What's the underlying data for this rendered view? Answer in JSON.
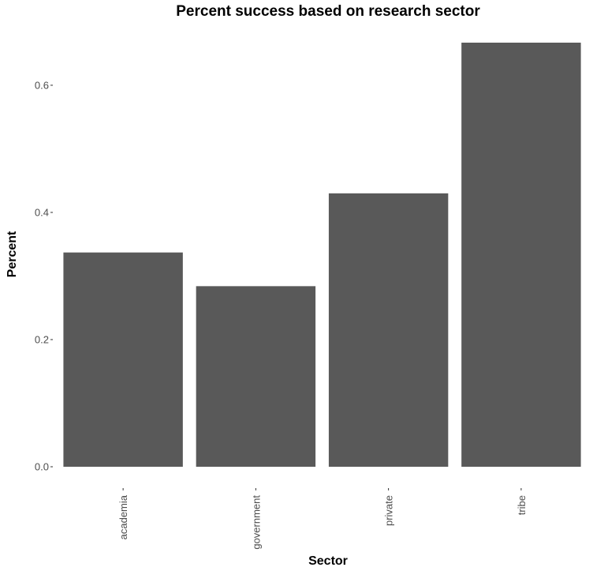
{
  "chart_data": {
    "type": "bar",
    "title": "Percent success based on research sector",
    "xlabel": "Sector",
    "ylabel": "Percent",
    "categories": [
      "academia",
      "government",
      "private",
      "tribe"
    ],
    "values": [
      0.337,
      0.284,
      0.43,
      0.667
    ],
    "ylim": [
      0,
      0.667
    ],
    "yticks": [
      0.0,
      0.2,
      0.4,
      0.6
    ],
    "ytick_labels": [
      "0.0",
      "0.2",
      "0.4",
      "0.6"
    ],
    "grid": false,
    "legend": "none",
    "bar_color": "#595959",
    "background": "#ffffff"
  }
}
